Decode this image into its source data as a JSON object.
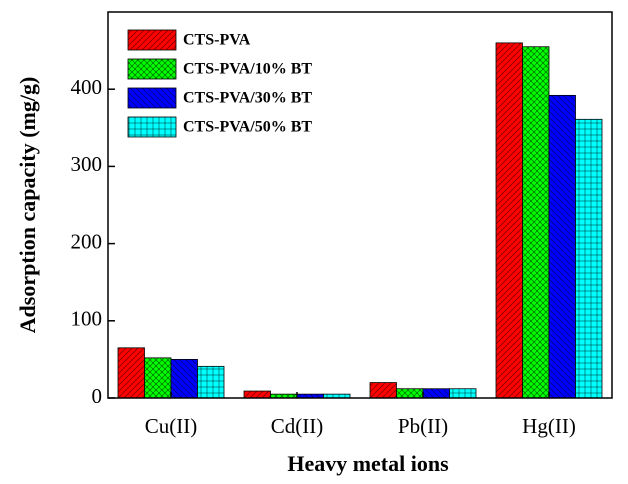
{
  "chart_data": {
    "type": "bar",
    "x_label": "Heavy metal ions",
    "y_label": "Adsorption capacity (mg/g)",
    "categories": [
      "Cu(II)",
      "Cd(II)",
      "Pb(II)",
      "Hg(II)"
    ],
    "series": [
      {
        "name": "CTS-PVA",
        "color": "#ff0000",
        "values": [
          65,
          9,
          20,
          460
        ]
      },
      {
        "name": "CTS-PVA/10% BT",
        "color": "#00ff00",
        "values": [
          52,
          5,
          12,
          455
        ]
      },
      {
        "name": "CTS-PVA/30% BT",
        "color": "#0000ff",
        "values": [
          50,
          5,
          12,
          392
        ]
      },
      {
        "name": "CTS-PVA/50% BT",
        "color": "#00ffff",
        "values": [
          41,
          5,
          12,
          361
        ]
      }
    ],
    "ylim": [
      0,
      500
    ],
    "yticks": [
      0,
      100,
      200,
      300,
      400
    ],
    "legend": "upper-left"
  }
}
